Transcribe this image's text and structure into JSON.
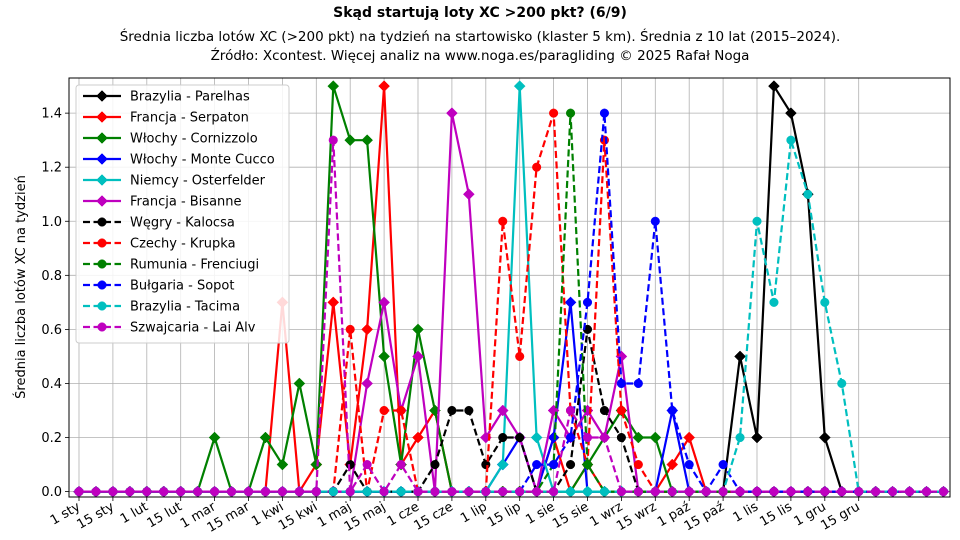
{
  "chart_data": {
    "type": "line",
    "title": "Skąd startują loty XC >200 pkt? (6/9)",
    "subtitle_lines": [
      "Średnia liczba lotów XC (>200 pkt) na tydzień na startowisko (klaster 5 km). Średnia z 10 lat (2015–2024).",
      "Źródło: Xcontest. Więcej analiz na www.noga.es/paragliding © 2025 Rafał Noga"
    ],
    "ylabel": "Średnia liczba lotów XC na tydzień",
    "xlabel": "",
    "x_tick_labels": [
      "1 sty",
      "15 sty",
      "1 lut",
      "15 lut",
      "1 mar",
      "15 mar",
      "1 kwi",
      "15 kwi",
      "1 maj",
      "15 maj",
      "1 cze",
      "15 cze",
      "1 lip",
      "15 lip",
      "1 sie",
      "15 sie",
      "1 wrz",
      "15 wrz",
      "1 paź",
      "15 paź",
      "1 lis",
      "15 lis",
      "1 gru",
      "15 gru"
    ],
    "y_ticks": [
      "0.0",
      "0.2",
      "0.4",
      "0.6",
      "0.8",
      "1.0",
      "1.2",
      "1.4"
    ],
    "ylim": [
      -0.02,
      1.53
    ],
    "weeks": 52,
    "grid": true,
    "legend_position": "top-left",
    "series": [
      {
        "name": "Brazylia - Parelhas",
        "color": "#000000",
        "style": "solid",
        "marker": "diamond",
        "points": [
          [
            39,
            0.5
          ],
          [
            40,
            0.2
          ],
          [
            41,
            1.5
          ],
          [
            42,
            1.4
          ],
          [
            43,
            1.1
          ],
          [
            44,
            0.2
          ]
        ]
      },
      {
        "name": "Francja - Serpaton",
        "color": "#ff0000",
        "style": "solid",
        "marker": "diamond",
        "points": [
          [
            12,
            0.7
          ],
          [
            14,
            0.1
          ],
          [
            15,
            0.7
          ],
          [
            16,
            0.1
          ],
          [
            17,
            0.6
          ],
          [
            18,
            1.5
          ],
          [
            19,
            0.1
          ],
          [
            20,
            0.2
          ],
          [
            21,
            0.3
          ],
          [
            28,
            0.2
          ],
          [
            30,
            0.1
          ],
          [
            35,
            0.1
          ],
          [
            36,
            0.2
          ]
        ]
      },
      {
        "name": "Włochy - Cornizzolo",
        "color": "#008000",
        "style": "solid",
        "marker": "diamond",
        "points": [
          [
            8,
            0.2
          ],
          [
            11,
            0.2
          ],
          [
            12,
            0.1
          ],
          [
            13,
            0.4
          ],
          [
            14,
            0.1
          ],
          [
            15,
            1.5
          ],
          [
            16,
            1.3
          ],
          [
            17,
            1.3
          ],
          [
            18,
            0.5
          ],
          [
            19,
            0.1
          ],
          [
            20,
            0.6
          ],
          [
            21,
            0.3
          ],
          [
            30,
            0.1
          ],
          [
            31,
            0.2
          ],
          [
            32,
            0.3
          ],
          [
            33,
            0.2
          ],
          [
            34,
            0.2
          ]
        ]
      },
      {
        "name": "Włochy - Monte Cucco",
        "color": "#0000ff",
        "style": "solid",
        "marker": "diamond",
        "points": [
          [
            25,
            0.1
          ],
          [
            26,
            0.2
          ],
          [
            28,
            0.2
          ],
          [
            29,
            0.7
          ],
          [
            35,
            0.3
          ]
        ]
      },
      {
        "name": "Niemcy - Osterfelder",
        "color": "#00bfbf",
        "style": "solid",
        "marker": "diamond",
        "points": [
          [
            25,
            0.1
          ],
          [
            26,
            1.5
          ],
          [
            27,
            0.2
          ]
        ]
      },
      {
        "name": "Francja - Bisanne",
        "color": "#bf00bf",
        "style": "solid",
        "marker": "diamond",
        "points": [
          [
            17,
            0.4
          ],
          [
            18,
            0.7
          ],
          [
            19,
            0.3
          ],
          [
            20,
            0.5
          ],
          [
            22,
            1.4
          ],
          [
            23,
            1.1
          ],
          [
            24,
            0.2
          ],
          [
            25,
            0.3
          ],
          [
            26,
            0.2
          ],
          [
            28,
            0.3
          ],
          [
            29,
            0.2
          ],
          [
            30,
            0.3
          ],
          [
            31,
            0.2
          ],
          [
            32,
            0.5
          ]
        ]
      },
      {
        "name": "Węgry - Kalocsa",
        "color": "#000000",
        "style": "dashed",
        "marker": "circle",
        "points": [
          [
            16,
            0.1
          ],
          [
            21,
            0.1
          ],
          [
            22,
            0.3
          ],
          [
            23,
            0.3
          ],
          [
            24,
            0.1
          ],
          [
            25,
            0.2
          ],
          [
            26,
            0.2
          ],
          [
            29,
            0.1
          ],
          [
            30,
            0.6
          ],
          [
            31,
            0.3
          ],
          [
            32,
            0.2
          ]
        ]
      },
      {
        "name": "Czechy - Krupka",
        "color": "#ff0000",
        "style": "dashed",
        "marker": "circle",
        "points": [
          [
            16,
            0.6
          ],
          [
            18,
            0.3
          ],
          [
            19,
            0.3
          ],
          [
            25,
            1.0
          ],
          [
            26,
            0.5
          ],
          [
            27,
            1.2
          ],
          [
            28,
            1.4
          ],
          [
            29,
            0.3
          ],
          [
            30,
            0.1
          ],
          [
            31,
            1.3
          ],
          [
            32,
            0.3
          ],
          [
            33,
            0.1
          ]
        ]
      },
      {
        "name": "Rumunia - Frenciugi",
        "color": "#008000",
        "style": "dashed",
        "marker": "circle",
        "points": [
          [
            28,
            0.1
          ],
          [
            29,
            1.4
          ],
          [
            30,
            0.1
          ]
        ]
      },
      {
        "name": "Bułgaria - Sopot",
        "color": "#0000ff",
        "style": "dashed",
        "marker": "circle",
        "points": [
          [
            27,
            0.1
          ],
          [
            28,
            0.1
          ],
          [
            29,
            0.2
          ],
          [
            30,
            0.7
          ],
          [
            31,
            1.4
          ],
          [
            32,
            0.4
          ],
          [
            33,
            0.4
          ],
          [
            34,
            1.0
          ],
          [
            35,
            0.3
          ],
          [
            36,
            0.1
          ],
          [
            38,
            0.1
          ]
        ]
      },
      {
        "name": "Brazylia - Tacima",
        "color": "#00bfbf",
        "style": "dashed",
        "marker": "circle",
        "points": [
          [
            39,
            0.2
          ],
          [
            40,
            1.0
          ],
          [
            41,
            0.7
          ],
          [
            42,
            1.3
          ],
          [
            43,
            1.1
          ],
          [
            44,
            0.7
          ],
          [
            45,
            0.4
          ]
        ]
      },
      {
        "name": "Szwajcaria - Lai Alv",
        "color": "#bf00bf",
        "style": "dashed",
        "marker": "circle",
        "points": [
          [
            15,
            1.3
          ],
          [
            17,
            0.1
          ],
          [
            19,
            0.1
          ],
          [
            29,
            0.3
          ],
          [
            30,
            0.2
          ],
          [
            31,
            0.2
          ]
        ]
      }
    ]
  }
}
